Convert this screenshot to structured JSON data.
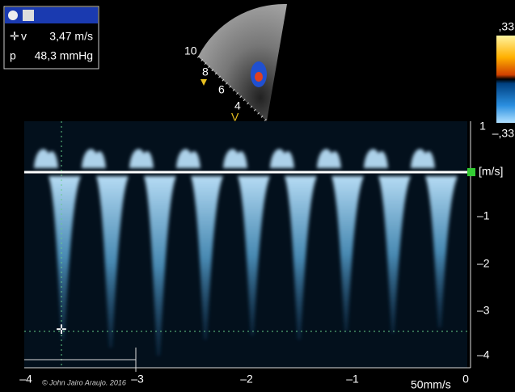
{
  "measurements": {
    "rows": [
      {
        "label": "v",
        "value": "3,47 m/s"
      },
      {
        "label": "p",
        "value": "48,3 mmHg"
      }
    ]
  },
  "sector": {
    "depth_labels": [
      "10",
      "8",
      "6",
      "4"
    ],
    "marker": "V"
  },
  "color_scale": {
    "top": ",33",
    "bottom": "–,33"
  },
  "velocity_axis": {
    "unit": "[m/s]",
    "labels": [
      "1",
      "–1",
      "–2",
      "–3",
      "–4"
    ]
  },
  "time_axis": {
    "labels": [
      "–4",
      "–3",
      "–2",
      "–1",
      "0"
    ],
    "speed": "50mm/s"
  },
  "copyright": "© John Jairo Araujo. 2016"
}
